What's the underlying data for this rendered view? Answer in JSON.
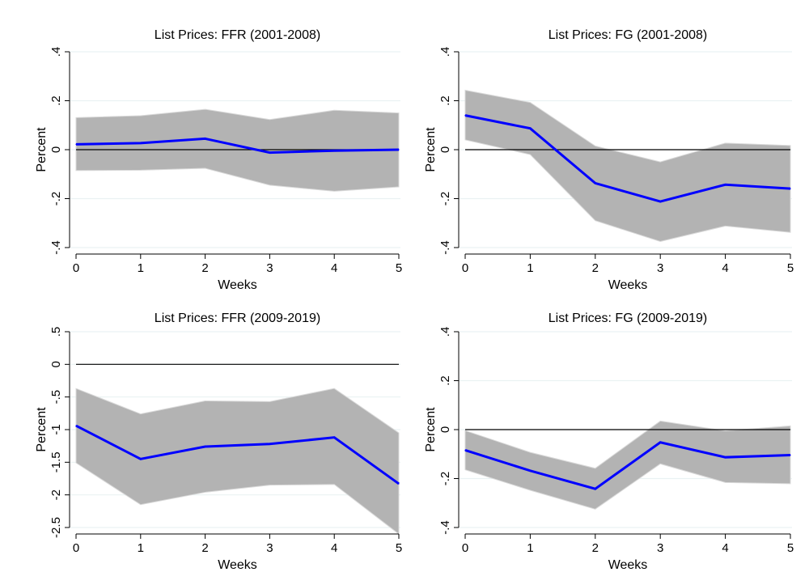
{
  "chart_data": [
    {
      "type": "line",
      "title": "List Prices: FFR (2001-2008)",
      "xlabel": "Weeks",
      "ylabel": "Percent",
      "x": [
        0,
        1,
        2,
        3,
        4,
        5
      ],
      "xticks": [
        "0",
        "1",
        "2",
        "3",
        "4",
        "5"
      ],
      "ylim": [
        -0.4,
        0.4
      ],
      "yticks": [
        -0.4,
        -0.2,
        0,
        0.2,
        0.4
      ],
      "yticklabels": [
        "-.4",
        "-.2",
        "0",
        ".2",
        ".4"
      ],
      "series": [
        {
          "values": [
            0.022,
            0.027,
            0.045,
            -0.012,
            -0.004,
            0.0
          ]
        }
      ],
      "band": {
        "lower": [
          -0.085,
          -0.084,
          -0.076,
          -0.145,
          -0.17,
          -0.152
        ],
        "upper": [
          0.131,
          0.139,
          0.165,
          0.123,
          0.161,
          0.15
        ]
      },
      "zero_line": true,
      "grid": true,
      "colors": {
        "line": "#0000ff",
        "band": "#b3b3b3",
        "zero": "#000000",
        "grid": "#eaf2f3"
      }
    },
    {
      "type": "line",
      "title": "List Prices: FG (2001-2008)",
      "xlabel": "Weeks",
      "ylabel": "Percent",
      "x": [
        0,
        1,
        2,
        3,
        4,
        5
      ],
      "xticks": [
        "0",
        "1",
        "2",
        "3",
        "4",
        "5"
      ],
      "ylim": [
        -0.4,
        0.4
      ],
      "yticks": [
        -0.4,
        -0.2,
        0,
        0.2,
        0.4
      ],
      "yticklabels": [
        "-.4",
        "-.2",
        "0",
        ".2",
        ".4"
      ],
      "series": [
        {
          "values": [
            0.14,
            0.087,
            -0.137,
            -0.212,
            -0.143,
            -0.159
          ]
        }
      ],
      "band": {
        "lower": [
          0.04,
          -0.02,
          -0.29,
          -0.375,
          -0.312,
          -0.338
        ],
        "upper": [
          0.243,
          0.193,
          0.015,
          -0.05,
          0.027,
          0.017
        ]
      },
      "zero_line": true,
      "grid": true,
      "colors": {
        "line": "#0000ff",
        "band": "#b3b3b3",
        "zero": "#000000",
        "grid": "#eaf2f3"
      }
    },
    {
      "type": "line",
      "title": "List Prices: FFR (2009-2019)",
      "xlabel": "Weeks",
      "ylabel": "Percent",
      "x": [
        0,
        1,
        2,
        3,
        4,
        5
      ],
      "xticks": [
        "0",
        "1",
        "2",
        "3",
        "4",
        "5"
      ],
      "ylim": [
        -2.5,
        0.5
      ],
      "yticks": [
        -2.5,
        -2,
        -1.5,
        -1,
        -0.5,
        0,
        0.5
      ],
      "yticklabels": [
        "-2.5",
        "-2",
        "-1.5",
        "-1",
        "-.5",
        "0",
        ".5"
      ],
      "series": [
        {
          "values": [
            -0.94,
            -1.45,
            -1.26,
            -1.22,
            -1.12,
            -1.83
          ]
        }
      ],
      "band": {
        "lower": [
          -1.51,
          -2.15,
          -1.96,
          -1.85,
          -1.84,
          -2.6
        ],
        "upper": [
          -0.37,
          -0.76,
          -0.56,
          -0.57,
          -0.37,
          -1.05
        ]
      },
      "zero_line": true,
      "grid": true,
      "colors": {
        "line": "#0000ff",
        "band": "#b3b3b3",
        "zero": "#000000",
        "grid": "#eaf2f3"
      }
    },
    {
      "type": "line",
      "title": "List Prices: FG (2009-2019)",
      "xlabel": "Weeks",
      "ylabel": "Percent",
      "x": [
        0,
        1,
        2,
        3,
        4,
        5
      ],
      "xticks": [
        "0",
        "1",
        "2",
        "3",
        "4",
        "5"
      ],
      "ylim": [
        -0.4,
        0.4
      ],
      "yticks": [
        -0.4,
        -0.2,
        0,
        0.2,
        0.4
      ],
      "yticklabels": [
        "-.4",
        "-.2",
        "0",
        ".2",
        ".4"
      ],
      "series": [
        {
          "values": [
            -0.084,
            -0.168,
            -0.242,
            -0.052,
            -0.113,
            -0.104
          ]
        }
      ],
      "band": {
        "lower": [
          -0.164,
          -0.248,
          -0.325,
          -0.14,
          -0.216,
          -0.221
        ],
        "upper": [
          -0.004,
          -0.093,
          -0.158,
          0.035,
          -0.005,
          0.015
        ]
      },
      "zero_line": true,
      "grid": true,
      "colors": {
        "line": "#0000ff",
        "band": "#b3b3b3",
        "zero": "#000000",
        "grid": "#eaf2f3"
      }
    }
  ]
}
